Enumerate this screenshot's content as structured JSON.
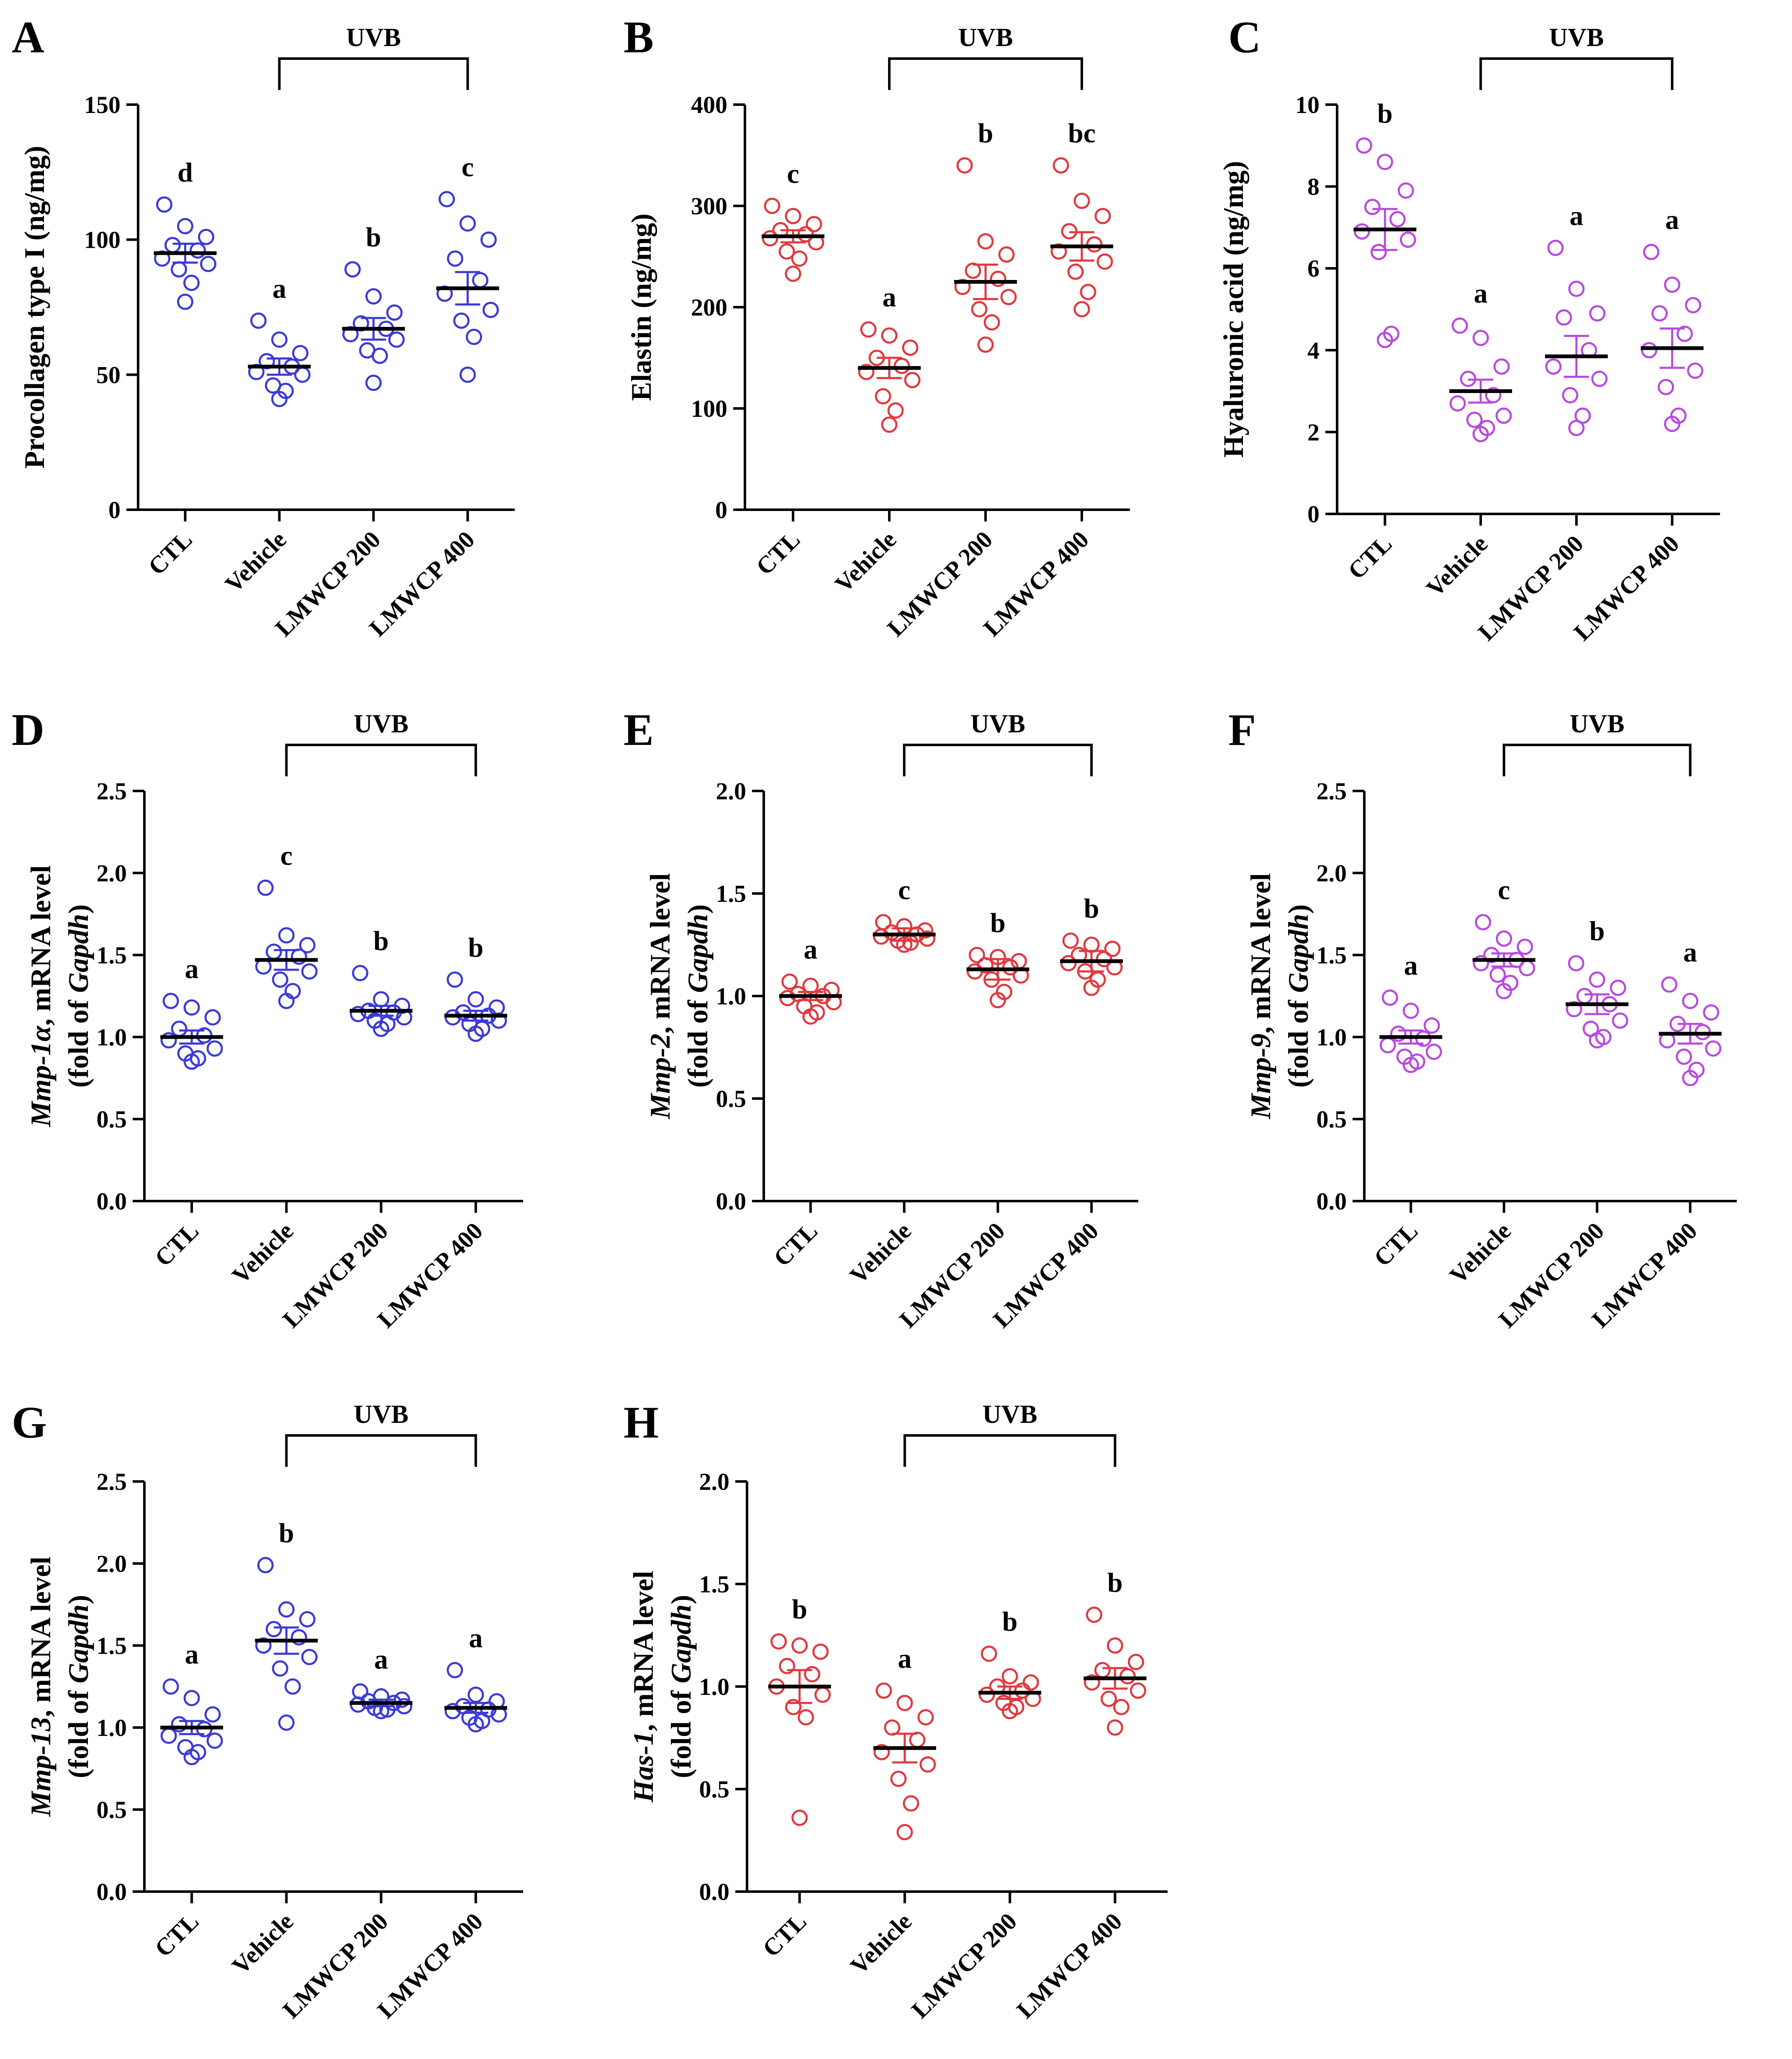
{
  "figure": {
    "colors": {
      "blue": "#3a3ad8",
      "red": "#e0393e",
      "purple": "#b94ae0",
      "ink": "#000000"
    },
    "categories": [
      "CTL",
      "Vehicle",
      "LMWCP 200",
      "LMWCP 400"
    ],
    "group_label": "UVB"
  },
  "chart_data": [
    {
      "panel": "A",
      "type": "scatter",
      "color": "blue",
      "ylabel": "Procollagen type I (ng/mg)",
      "ylabel_italic": "",
      "ylim": [
        0,
        150
      ],
      "yticks": [
        0,
        50,
        100,
        150
      ],
      "categories": [
        "CTL",
        "Vehicle",
        "LMWCP 200",
        "LMWCP 400"
      ],
      "groups": [
        {
          "name": "CTL",
          "letter": "d",
          "mean": 95,
          "sem": 3.5,
          "points": [
            113,
            105,
            101,
            98,
            96,
            93,
            91,
            89,
            84,
            77
          ]
        },
        {
          "name": "Vehicle",
          "letter": "a",
          "mean": 53,
          "sem": 3,
          "points": [
            70,
            63,
            58,
            55,
            53,
            51,
            50,
            46,
            44,
            41
          ]
        },
        {
          "name": "LMWCP 200",
          "letter": "b",
          "mean": 67,
          "sem": 4,
          "points": [
            89,
            79,
            73,
            69,
            67,
            65,
            63,
            59,
            57,
            47
          ]
        },
        {
          "name": "LMWCP 400",
          "letter": "c",
          "mean": 82,
          "sem": 6,
          "points": [
            115,
            106,
            100,
            93,
            85,
            80,
            74,
            70,
            64,
            50
          ]
        }
      ]
    },
    {
      "panel": "B",
      "type": "scatter",
      "color": "red",
      "ylabel": "Elastin (ng/mg)",
      "ylabel_italic": "",
      "ylim": [
        0,
        400
      ],
      "yticks": [
        0,
        100,
        200,
        300,
        400
      ],
      "categories": [
        "CTL",
        "Vehicle",
        "LMWCP 200",
        "LMWCP 400"
      ],
      "groups": [
        {
          "name": "CTL",
          "letter": "c",
          "mean": 270,
          "sem": 6,
          "points": [
            300,
            290,
            282,
            276,
            272,
            268,
            264,
            255,
            248,
            233
          ]
        },
        {
          "name": "Vehicle",
          "letter": "a",
          "mean": 140,
          "sem": 10,
          "points": [
            178,
            172,
            160,
            150,
            142,
            136,
            128,
            112,
            98,
            84
          ]
        },
        {
          "name": "LMWCP 200",
          "letter": "b",
          "mean": 225,
          "sem": 17,
          "points": [
            340,
            265,
            252,
            236,
            228,
            220,
            210,
            198,
            185,
            163
          ]
        },
        {
          "name": "LMWCP 400",
          "letter": "bc",
          "mean": 260,
          "sem": 14,
          "points": [
            340,
            305,
            290,
            275,
            262,
            255,
            245,
            235,
            215,
            198
          ]
        }
      ]
    },
    {
      "panel": "C",
      "type": "scatter",
      "color": "purple",
      "ylabel": "Hyaluronic acid (ng/mg)",
      "ylabel_italic": "",
      "ylim": [
        0,
        10
      ],
      "yticks": [
        0,
        2,
        4,
        6,
        8,
        10
      ],
      "categories": [
        "CTL",
        "Vehicle",
        "LMWCP 200",
        "LMWCP 400"
      ],
      "groups": [
        {
          "name": "CTL",
          "letter": "b",
          "mean": 6.95,
          "sem": 0.5,
          "points": [
            9.0,
            8.6,
            7.9,
            7.5,
            7.2,
            6.9,
            6.7,
            6.4,
            4.4,
            4.25
          ]
        },
        {
          "name": "Vehicle",
          "letter": "a",
          "mean": 3.0,
          "sem": 0.28,
          "points": [
            4.6,
            4.3,
            3.6,
            3.3,
            2.9,
            2.7,
            2.4,
            2.3,
            2.1,
            1.95
          ]
        },
        {
          "name": "LMWCP 200",
          "letter": "a",
          "mean": 3.85,
          "sem": 0.5,
          "points": [
            6.5,
            5.5,
            4.9,
            4.8,
            4.0,
            3.6,
            3.3,
            2.9,
            2.4,
            2.1
          ]
        },
        {
          "name": "LMWCP 400",
          "letter": "a",
          "mean": 4.05,
          "sem": 0.48,
          "points": [
            6.4,
            5.6,
            5.1,
            4.9,
            4.4,
            4.0,
            3.5,
            3.1,
            2.4,
            2.2
          ]
        }
      ]
    },
    {
      "panel": "D",
      "type": "scatter",
      "color": "blue",
      "ylabel": ", mRNA level",
      "ylabel_italic": "Mmp-1α",
      "ylabel2": "(fold of ",
      "ylabel2_italic": "Gapdh",
      "ylabel2_end": ")",
      "ylim": [
        0,
        2.5
      ],
      "yticks": [
        "0.0",
        "0.5",
        "1.0",
        "1.5",
        "2.0",
        "2.5"
      ],
      "categories": [
        "CTL",
        "Vehicle",
        "LMWCP 200",
        "LMWCP 400"
      ],
      "groups": [
        {
          "name": "CTL",
          "letter": "a",
          "mean": 1.0,
          "sem": 0.04,
          "points": [
            1.22,
            1.18,
            1.12,
            1.05,
            1.01,
            0.98,
            0.93,
            0.9,
            0.87,
            0.85
          ]
        },
        {
          "name": "Vehicle",
          "letter": "c",
          "mean": 1.47,
          "sem": 0.06,
          "points": [
            1.91,
            1.62,
            1.56,
            1.52,
            1.49,
            1.43,
            1.4,
            1.35,
            1.28,
            1.22
          ]
        },
        {
          "name": "LMWCP 200",
          "letter": "b",
          "mean": 1.16,
          "sem": 0.03,
          "points": [
            1.39,
            1.23,
            1.19,
            1.16,
            1.15,
            1.14,
            1.12,
            1.1,
            1.08,
            1.05
          ]
        },
        {
          "name": "LMWCP 400",
          "letter": "b",
          "mean": 1.13,
          "sem": 0.03,
          "points": [
            1.35,
            1.23,
            1.18,
            1.15,
            1.13,
            1.12,
            1.1,
            1.08,
            1.05,
            1.02
          ]
        }
      ]
    },
    {
      "panel": "E",
      "type": "scatter",
      "color": "red",
      "ylabel": ", mRNA level",
      "ylabel_italic": "Mmp-2",
      "ylabel2": "(fold of ",
      "ylabel2_italic": "Gapdh",
      "ylabel2_end": ")",
      "ylim": [
        0,
        2.0
      ],
      "yticks": [
        "0.0",
        "0.5",
        "1.0",
        "1.5",
        "2.0"
      ],
      "categories": [
        "CTL",
        "Vehicle",
        "LMWCP 200",
        "LMWCP 400"
      ],
      "groups": [
        {
          "name": "CTL",
          "letter": "a",
          "mean": 1.0,
          "sem": 0.02,
          "points": [
            1.07,
            1.05,
            1.03,
            1.01,
            1.0,
            0.99,
            0.97,
            0.95,
            0.92,
            0.9
          ]
        },
        {
          "name": "Vehicle",
          "letter": "c",
          "mean": 1.3,
          "sem": 0.03,
          "points": [
            1.36,
            1.34,
            1.32,
            1.31,
            1.3,
            1.29,
            1.28,
            1.27,
            1.26,
            1.25
          ]
        },
        {
          "name": "LMWCP 200",
          "letter": "b",
          "mean": 1.13,
          "sem": 0.05,
          "points": [
            1.2,
            1.19,
            1.17,
            1.15,
            1.14,
            1.12,
            1.1,
            1.08,
            1.02,
            0.98
          ]
        },
        {
          "name": "LMWCP 400",
          "letter": "b",
          "mean": 1.17,
          "sem": 0.05,
          "points": [
            1.27,
            1.25,
            1.23,
            1.2,
            1.18,
            1.16,
            1.14,
            1.12,
            1.08,
            1.04
          ]
        }
      ]
    },
    {
      "panel": "F",
      "type": "scatter",
      "color": "purple",
      "ylabel": ", mRNA level",
      "ylabel_italic": "Mmp-9",
      "ylabel2": "(fold of ",
      "ylabel2_italic": "Gapdh",
      "ylabel2_end": ")",
      "ylim": [
        0,
        2.5
      ],
      "yticks": [
        "0.0",
        "0.5",
        "1.0",
        "1.5",
        "2.0",
        "2.5"
      ],
      "categories": [
        "CTL",
        "Vehicle",
        "LMWCP 200",
        "LMWCP 400"
      ],
      "groups": [
        {
          "name": "CTL",
          "letter": "a",
          "mean": 1.0,
          "sem": 0.04,
          "points": [
            1.24,
            1.16,
            1.07,
            1.02,
            0.99,
            0.95,
            0.91,
            0.88,
            0.85,
            0.83
          ]
        },
        {
          "name": "Vehicle",
          "letter": "c",
          "mean": 1.47,
          "sem": 0.04,
          "points": [
            1.7,
            1.6,
            1.55,
            1.5,
            1.47,
            1.45,
            1.42,
            1.38,
            1.33,
            1.28
          ]
        },
        {
          "name": "LMWCP 200",
          "letter": "b",
          "mean": 1.2,
          "sem": 0.06,
          "points": [
            1.45,
            1.35,
            1.3,
            1.25,
            1.2,
            1.17,
            1.1,
            1.05,
            1.0,
            0.98
          ]
        },
        {
          "name": "LMWCP 400",
          "letter": "a",
          "mean": 1.02,
          "sem": 0.06,
          "points": [
            1.32,
            1.22,
            1.15,
            1.08,
            1.03,
            0.98,
            0.93,
            0.88,
            0.8,
            0.75
          ]
        }
      ]
    },
    {
      "panel": "G",
      "type": "scatter",
      "color": "blue",
      "ylabel": ", mRNA level",
      "ylabel_italic": "Mmp-13",
      "ylabel2": "(fold of ",
      "ylabel2_italic": "Gapdh",
      "ylabel2_end": ")",
      "ylim": [
        0,
        2.5
      ],
      "yticks": [
        "0.0",
        "0.5",
        "1.0",
        "1.5",
        "2.0",
        "2.5"
      ],
      "categories": [
        "CTL",
        "Vehicle",
        "LMWCP 200",
        "LMWCP 400"
      ],
      "groups": [
        {
          "name": "CTL",
          "letter": "a",
          "mean": 1.0,
          "sem": 0.04,
          "points": [
            1.25,
            1.18,
            1.08,
            1.02,
            0.99,
            0.95,
            0.92,
            0.88,
            0.85,
            0.82
          ]
        },
        {
          "name": "Vehicle",
          "letter": "b",
          "mean": 1.53,
          "sem": 0.08,
          "points": [
            1.99,
            1.72,
            1.66,
            1.6,
            1.55,
            1.5,
            1.43,
            1.36,
            1.25,
            1.03
          ]
        },
        {
          "name": "LMWCP 200",
          "letter": "a",
          "mean": 1.15,
          "sem": 0.02,
          "points": [
            1.22,
            1.19,
            1.17,
            1.16,
            1.15,
            1.14,
            1.13,
            1.12,
            1.11,
            1.1
          ]
        },
        {
          "name": "LMWCP 400",
          "letter": "a",
          "mean": 1.12,
          "sem": 0.03,
          "points": [
            1.35,
            1.2,
            1.16,
            1.13,
            1.11,
            1.1,
            1.08,
            1.06,
            1.04,
            1.02
          ]
        }
      ]
    },
    {
      "panel": "H",
      "type": "scatter",
      "color": "red",
      "ylabel": ", mRNA level",
      "ylabel_italic": "Has-1",
      "ylabel2": "(fold of ",
      "ylabel2_italic": "Gapdh",
      "ylabel2_end": ")",
      "ylim": [
        0,
        2.0
      ],
      "yticks": [
        "0.0",
        "0.5",
        "1.0",
        "1.5",
        "2.0"
      ],
      "categories": [
        "CTL",
        "Vehicle",
        "LMWCP 200",
        "LMWCP 400"
      ],
      "groups": [
        {
          "name": "CTL",
          "letter": "b",
          "mean": 1.0,
          "sem": 0.08,
          "points": [
            1.22,
            1.2,
            1.17,
            1.1,
            1.06,
            1.0,
            0.96,
            0.9,
            0.85,
            0.36
          ]
        },
        {
          "name": "Vehicle",
          "letter": "a",
          "mean": 0.7,
          "sem": 0.07,
          "points": [
            0.98,
            0.92,
            0.85,
            0.8,
            0.74,
            0.68,
            0.62,
            0.55,
            0.43,
            0.29
          ]
        },
        {
          "name": "LMWCP 200",
          "letter": "b",
          "mean": 0.97,
          "sem": 0.03,
          "points": [
            1.16,
            1.05,
            1.02,
            1.0,
            0.98,
            0.96,
            0.94,
            0.92,
            0.9,
            0.88
          ]
        },
        {
          "name": "LMWCP 400",
          "letter": "b",
          "mean": 1.04,
          "sem": 0.05,
          "points": [
            1.35,
            1.2,
            1.12,
            1.08,
            1.05,
            1.02,
            0.98,
            0.94,
            0.9,
            0.8
          ]
        }
      ]
    }
  ]
}
